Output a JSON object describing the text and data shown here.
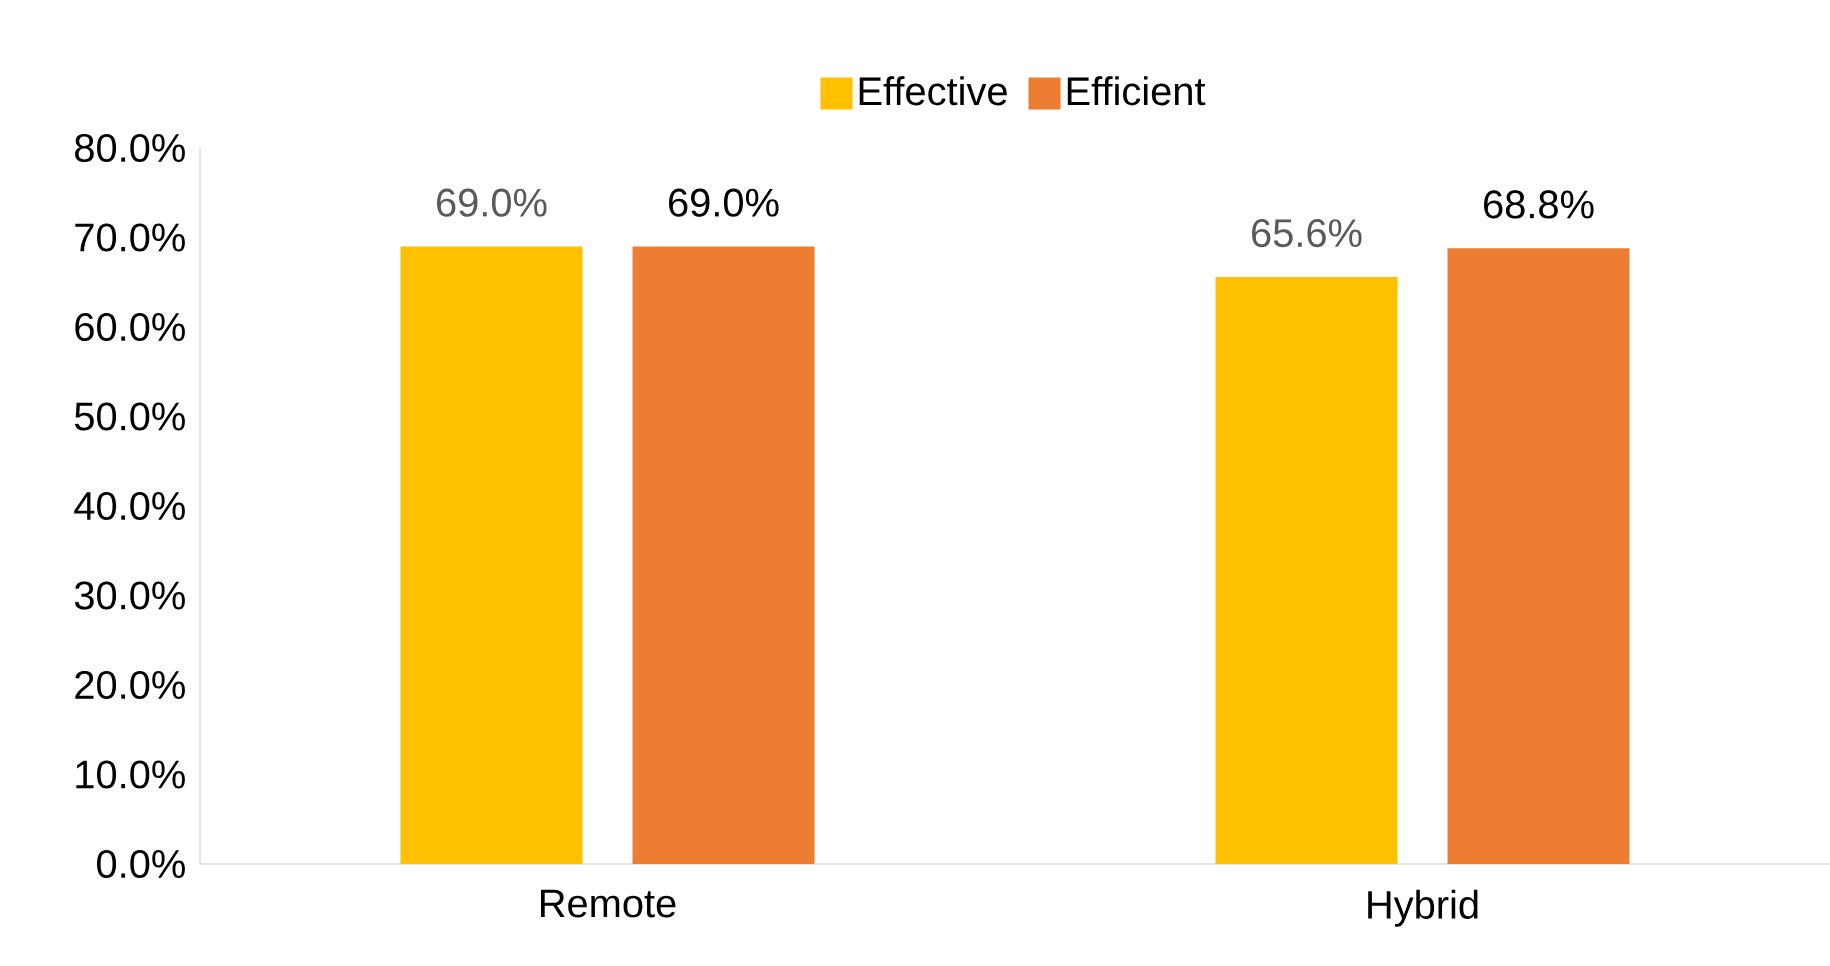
{
  "chart_data": {
    "type": "bar",
    "categories": [
      "Remote",
      "Hybrid"
    ],
    "series": [
      {
        "name": "Effective",
        "color": "#ffc000",
        "values": [
          69.0,
          65.6
        ],
        "value_labels": [
          "69.0%",
          "65.6%"
        ]
      },
      {
        "name": "Efficient",
        "color": "#ed7d31",
        "values": [
          69.0,
          68.8
        ],
        "value_labels": [
          "69.0%",
          "68.8%"
        ]
      }
    ],
    "ylim": [
      0,
      80
    ],
    "yticks": [
      {
        "value": 0,
        "label": "0.0%"
      },
      {
        "value": 10,
        "label": "10.0%"
      },
      {
        "value": 20,
        "label": "20.0%"
      },
      {
        "value": 30,
        "label": "30.0%"
      },
      {
        "value": 40,
        "label": "40.0%"
      },
      {
        "value": 50,
        "label": "50.0%"
      },
      {
        "value": 60,
        "label": "60.0%"
      },
      {
        "value": 70,
        "label": "70.0%"
      },
      {
        "value": 80,
        "label": "80.0%"
      }
    ],
    "grid": false,
    "legend": "top"
  }
}
